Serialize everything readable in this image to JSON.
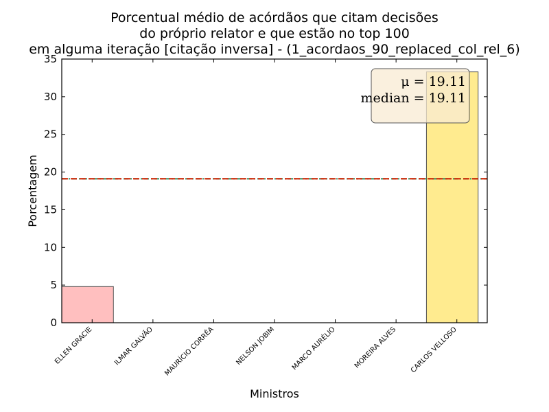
{
  "chart_data": {
    "type": "bar",
    "title_lines": [
      "Porcentual médio de acórdãos que citam decisões",
      "do próprio relator e que estão no top 100",
      "em alguma iteração [citação inversa] - (1_acordaos_90_replaced_col_rel_6)"
    ],
    "xlabel": "Ministros",
    "ylabel": "Porcentagem",
    "categories": [
      "ELLEN GRACIE",
      "ILMAR GALVÃO",
      "MAURÍCIO CORRÊA",
      "NELSON JOBIM",
      "MARCO AURÉLIO",
      "MOREIRA ALVES",
      "CARLOS VELLOSO"
    ],
    "values": [
      4.8,
      0,
      0,
      0,
      0,
      0,
      33.3
    ],
    "bar_colors": [
      "#ffbfbf",
      "#ffbfbf",
      "#ffbfbf",
      "#ffbfbf",
      "#ffbfbf",
      "#ffbfbf",
      "#ffeb8f"
    ],
    "ylim": [
      0,
      35
    ],
    "yticks": [
      0,
      5,
      10,
      15,
      20,
      25,
      30,
      35
    ],
    "mean": 19.11,
    "median": 19.11,
    "mean_line_color": "#cc2200",
    "median_line_color": "#2e8b57",
    "stats_box": {
      "mean_text": "μ = 19.11",
      "median_text": "median = 19.11",
      "background": "#f8ebd3"
    },
    "grid": false,
    "legend": "top-right"
  }
}
